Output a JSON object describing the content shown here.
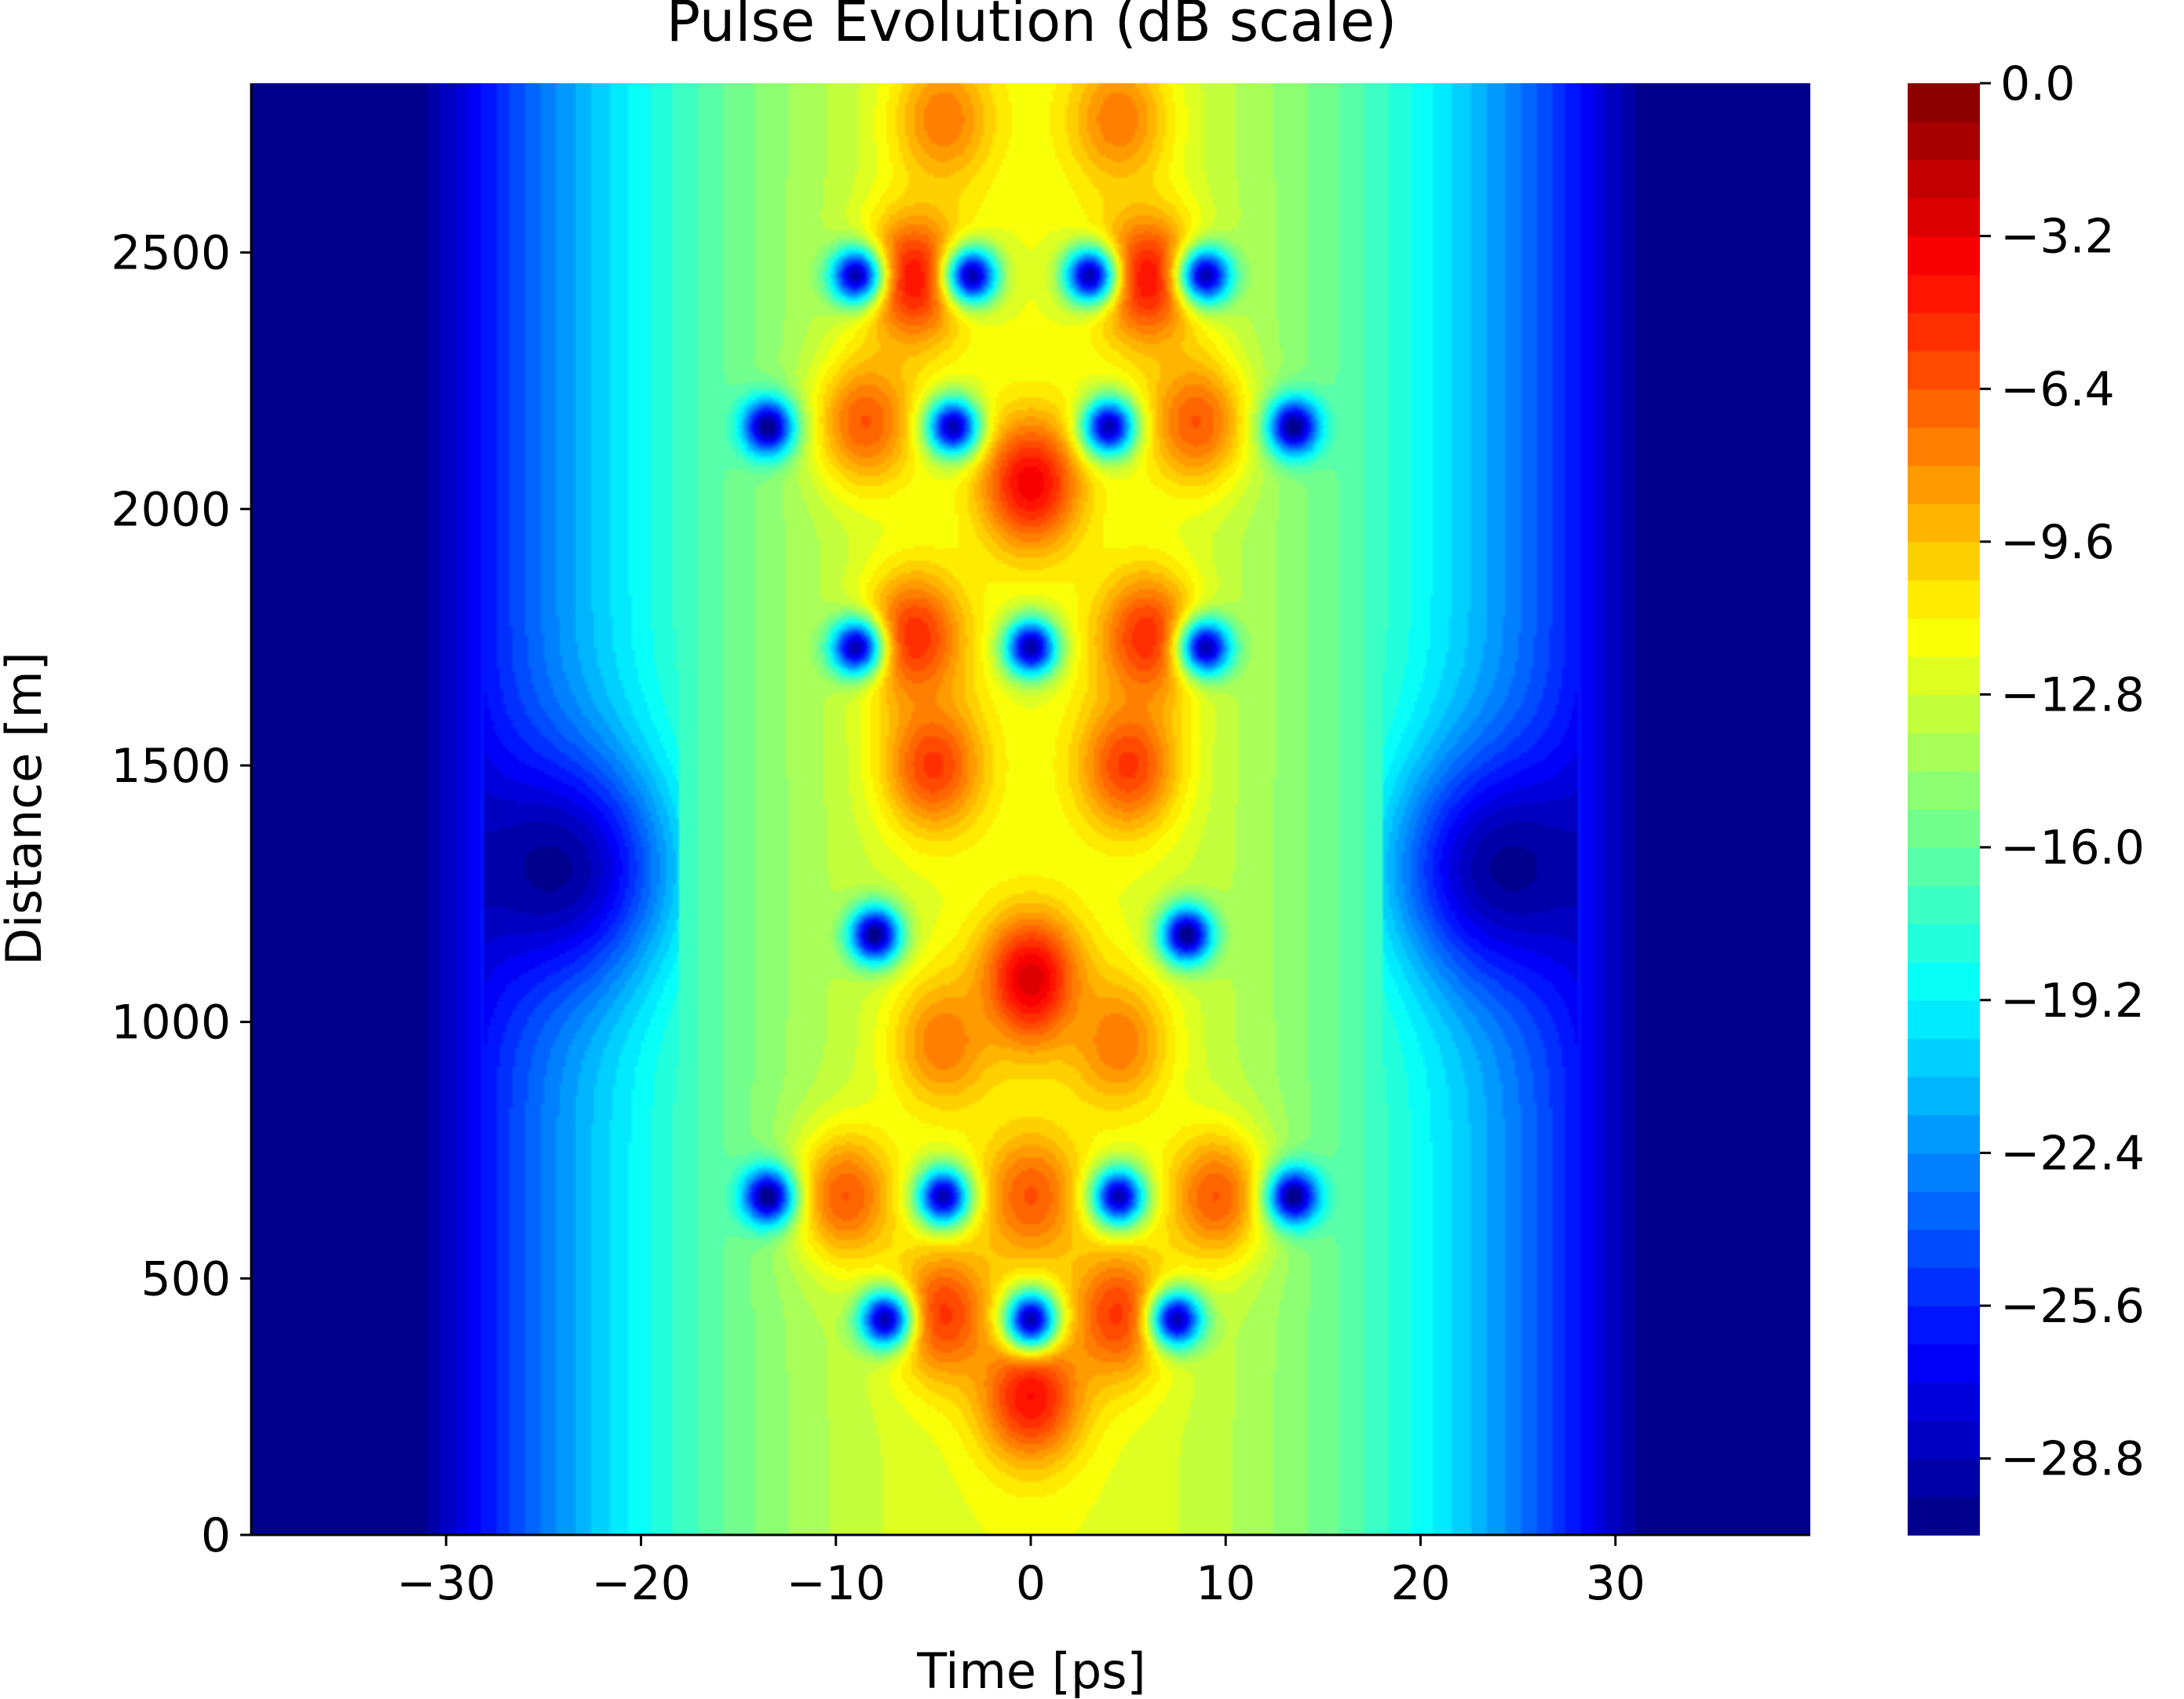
{
  "chart_data": {
    "type": "heatmap",
    "title": "Pulse Evolution (dB scale)",
    "xlabel": "Time [ps]",
    "ylabel": "Distance [m]",
    "xlim": [
      -40,
      40
    ],
    "ylim": [
      0,
      2830
    ],
    "x_ticks": [
      -30,
      -20,
      -10,
      0,
      10,
      20,
      30
    ],
    "x_tick_labels": [
      "−30",
      "−20",
      "−10",
      "0",
      "10",
      "20",
      "30"
    ],
    "y_ticks": [
      0,
      500,
      1000,
      1500,
      2000,
      2500
    ],
    "y_tick_labels": [
      "0",
      "500",
      "1000",
      "1500",
      "2000",
      "2500"
    ],
    "colormap": "jet",
    "color_range": [
      -30.4,
      0.0
    ],
    "n_levels": 38,
    "colorbar_ticks": [
      0.0,
      -3.2,
      -6.4,
      -9.6,
      -12.8,
      -16.0,
      -19.2,
      -22.4,
      -25.6,
      -28.8
    ],
    "colorbar_tick_labels": [
      "0.0",
      "−3.2",
      "−6.4",
      "−9.6",
      "−12.8",
      "−16.0",
      "−19.2",
      "−22.4",
      "−25.6",
      "−28.8"
    ],
    "field": {
      "description_units": "dB",
      "peaks": [
        {
          "t": 0,
          "z": 270,
          "db": -3.5
        },
        {
          "t": -4.5,
          "z": 430,
          "db": -5.0
        },
        {
          "t": 4.5,
          "z": 430,
          "db": -5.0
        },
        {
          "t": -9.5,
          "z": 660,
          "db": -6.0
        },
        {
          "t": 9.5,
          "z": 660,
          "db": -6.0
        },
        {
          "t": 0,
          "z": 660,
          "db": -6.0
        },
        {
          "t": 0,
          "z": 1080,
          "db": -2.0
        },
        {
          "t": -4.5,
          "z": 960,
          "db": -7.0
        },
        {
          "t": 4.5,
          "z": 960,
          "db": -7.0
        },
        {
          "t": -5,
          "z": 1500,
          "db": -5.0
        },
        {
          "t": 5,
          "z": 1500,
          "db": -5.0
        },
        {
          "t": -6,
          "z": 1750,
          "db": -4.5
        },
        {
          "t": 6,
          "z": 1750,
          "db": -4.5
        },
        {
          "t": 0,
          "z": 2050,
          "db": -3.0
        },
        {
          "t": -8.5,
          "z": 2170,
          "db": -6.0
        },
        {
          "t": 8.5,
          "z": 2170,
          "db": -6.0
        },
        {
          "t": -6,
          "z": 2450,
          "db": -3.5
        },
        {
          "t": 6,
          "z": 2450,
          "db": -3.5
        },
        {
          "t": -4.5,
          "z": 2760,
          "db": -7.0
        },
        {
          "t": 4.5,
          "z": 2760,
          "db": -7.0
        }
      ],
      "nulls": [
        {
          "t": -13.5,
          "z": 660,
          "db": -30.4
        },
        {
          "t": 13.5,
          "z": 660,
          "db": -30.4
        },
        {
          "t": -4.5,
          "z": 660,
          "db": -29.0
        },
        {
          "t": 4.5,
          "z": 660,
          "db": -29.0
        },
        {
          "t": -7.5,
          "z": 420,
          "db": -29.0
        },
        {
          "t": 7.5,
          "z": 420,
          "db": -29.0
        },
        {
          "t": 0,
          "z": 420,
          "db": -29.0
        },
        {
          "t": -8,
          "z": 1170,
          "db": -30.4
        },
        {
          "t": 8,
          "z": 1170,
          "db": -30.4
        },
        {
          "t": -9,
          "z": 1730,
          "db": -29.0
        },
        {
          "t": 9,
          "z": 1730,
          "db": -29.0
        },
        {
          "t": 0,
          "z": 1730,
          "db": -29.5
        },
        {
          "t": -13.5,
          "z": 2160,
          "db": -30.4
        },
        {
          "t": 13.5,
          "z": 2160,
          "db": -30.4
        },
        {
          "t": -4,
          "z": 2160,
          "db": -29.0
        },
        {
          "t": 4,
          "z": 2160,
          "db": -29.0
        },
        {
          "t": -9,
          "z": 2455,
          "db": -29.0
        },
        {
          "t": 9,
          "z": 2455,
          "db": -29.0
        },
        {
          "t": -3,
          "z": 2455,
          "db": -29.0
        },
        {
          "t": 3,
          "z": 2455,
          "db": -29.0
        }
      ]
    }
  }
}
